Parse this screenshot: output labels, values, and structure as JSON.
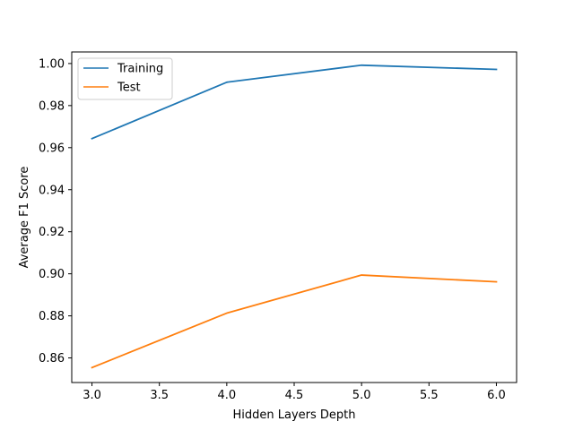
{
  "chart_data": {
    "type": "line",
    "title": "",
    "xlabel": "Hidden Layers Depth",
    "ylabel": "Average F1 Score",
    "x": [
      3.0,
      4.0,
      5.0,
      6.0
    ],
    "xlim": [
      2.85,
      6.15
    ],
    "ylim": [
      0.8483,
      1.0055
    ],
    "xticks": [
      "3.0",
      "3.5",
      "4.0",
      "4.5",
      "5.0",
      "5.5",
      "6.0"
    ],
    "yticks": [
      "0.86",
      "0.88",
      "0.90",
      "0.92",
      "0.94",
      "0.96",
      "0.98",
      "1.00"
    ],
    "grid": false,
    "legend_position": "top-left",
    "series": [
      {
        "name": "Training",
        "color": "#1f77b4",
        "values": [
          0.9643,
          0.9911,
          0.9992,
          0.9972
        ]
      },
      {
        "name": "Test",
        "color": "#ff7f0e",
        "values": [
          0.8554,
          0.8813,
          0.8994,
          0.8962
        ]
      }
    ]
  }
}
